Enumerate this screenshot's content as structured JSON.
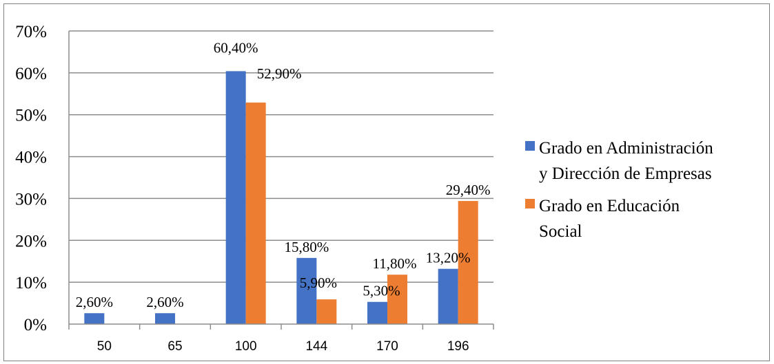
{
  "chart_data": {
    "type": "bar",
    "categories": [
      "50",
      "65",
      "100",
      "144",
      "170",
      "196"
    ],
    "series": [
      {
        "name": "Grado en Administración y Dirección de Empresas",
        "name_lines": [
          "Grado en Administración",
          "y Dirección de Empresas"
        ],
        "values": [
          2.6,
          2.6,
          60.4,
          15.8,
          5.3,
          13.2
        ],
        "labels": [
          "2,60%",
          "2,60%",
          "60,40%",
          "15,80%",
          "5,30%",
          "13,20%"
        ],
        "color": "#4472c4"
      },
      {
        "name": "Grado en Educación Social",
        "name_lines": [
          "Grado en Educación",
          "Social"
        ],
        "values": [
          null,
          null,
          52.9,
          5.9,
          11.8,
          29.4
        ],
        "labels": [
          "",
          "",
          "52,90%",
          "5,90%",
          "11,80%",
          "29,40%"
        ],
        "color": "#ed7d31"
      }
    ],
    "yticks": [
      "0%",
      "10%",
      "20%",
      "30%",
      "40%",
      "50%",
      "60%",
      "70%"
    ],
    "ylim": [
      0,
      70
    ],
    "grid": true,
    "legend_position": "right"
  }
}
